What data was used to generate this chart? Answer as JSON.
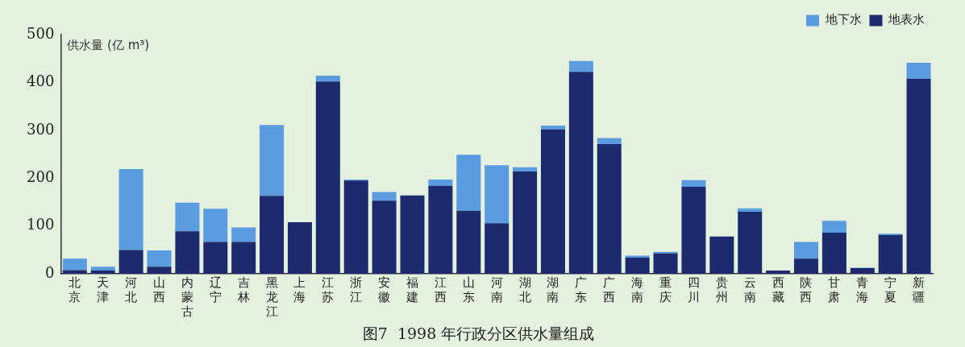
{
  "chart_data": {
    "type": "bar",
    "title": "图7  1998 年行政分区供水量组成",
    "ylabel": "供水量 (亿 m³)",
    "categories": [
      "北京",
      "天津",
      "河北",
      "山西",
      "内蒙古",
      "辽宁",
      "吉林",
      "黑龙江",
      "上海",
      "江苏",
      "浙江",
      "安徽",
      "福建",
      "江西",
      "山东",
      "河南",
      "湖北",
      "湖南",
      "广东",
      "广西",
      "海南",
      "重庆",
      "四川",
      "贵州",
      "云南",
      "西藏",
      "陕西",
      "甘肃",
      "青海",
      "宁夏",
      "新疆"
    ],
    "series": [
      {
        "name": "地表水",
        "color": "#1c2a6e",
        "values": [
          8,
          7,
          50,
          15,
          89,
          67,
          67,
          163,
          108,
          402,
          195,
          153,
          164,
          184,
          132,
          106,
          214,
          302,
          422,
          271,
          34,
          43,
          182,
          78,
          130,
          7,
          32,
          86,
          12,
          81,
          408
        ]
      },
      {
        "name": "地下水",
        "color": "#5b9bdf",
        "values": [
          24,
          8,
          169,
          34,
          60,
          69,
          30,
          148,
          0,
          12,
          2,
          18,
          0,
          13,
          117,
          121,
          9,
          8,
          23,
          13,
          4,
          3,
          14,
          0,
          7,
          0,
          35,
          25,
          1,
          3,
          33
        ]
      }
    ],
    "stacked": true,
    "ylim": [
      0,
      500
    ],
    "yticks": [
      0,
      100,
      200,
      300,
      400,
      500
    ],
    "grid": false,
    "legend": "top right"
  }
}
